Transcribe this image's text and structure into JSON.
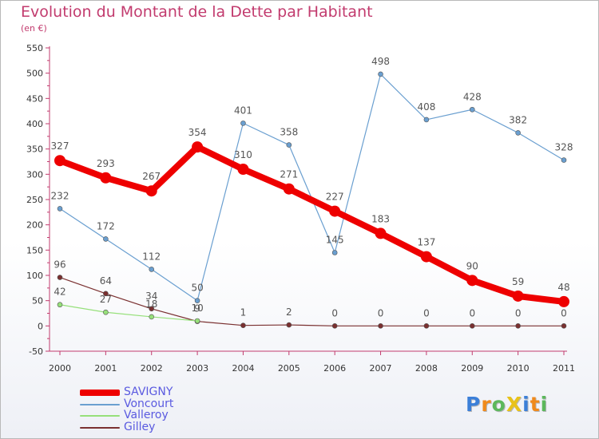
{
  "header": {
    "title": "Evolution du Montant de la Dette par Habitant",
    "subtitle": "(en €)"
  },
  "logo": {
    "letters": [
      {
        "char": "P",
        "color": "#3b7fd8"
      },
      {
        "char": "r",
        "color": "#f08a1c"
      },
      {
        "char": "o",
        "color": "#5cb85c"
      },
      {
        "char": "X",
        "color": "#e8c21a"
      },
      {
        "char": "i",
        "color": "#3b7fd8"
      },
      {
        "char": "t",
        "color": "#f08a1c"
      },
      {
        "char": "i",
        "color": "#5cb85c"
      }
    ]
  },
  "chart_data": {
    "type": "line",
    "title": "Evolution du Montant de la Dette par Habitant",
    "subtitle": "(en €)",
    "x": [
      "2000",
      "2001",
      "2002",
      "2003",
      "2004",
      "2005",
      "2006",
      "2007",
      "2008",
      "2009",
      "2010",
      "2011"
    ],
    "ylim": [
      -50,
      550
    ],
    "yticks": [
      -50,
      0,
      50,
      100,
      150,
      200,
      250,
      300,
      350,
      400,
      450,
      500,
      550
    ],
    "grid": false,
    "legend_position": "bottom-left",
    "series": [
      {
        "name": "SAVIGNY",
        "color": "#ee0000",
        "values": [
          327,
          293,
          267,
          354,
          310,
          271,
          227,
          183,
          137,
          90,
          59,
          48
        ],
        "labels": [
          "327",
          "293",
          "267",
          "354",
          "310",
          "271",
          "227",
          "183",
          "137",
          "90",
          "59",
          "48"
        ]
      },
      {
        "name": "Voncourt",
        "color": "#6a9fd0",
        "values": [
          232,
          172,
          112,
          50,
          401,
          358,
          145,
          498,
          408,
          428,
          382,
          328
        ],
        "labels": [
          "232",
          "172",
          "112",
          "50",
          "401",
          "358",
          "145",
          "498",
          "408",
          "428",
          "382",
          "328"
        ]
      },
      {
        "name": "Valleroy",
        "color": "#96e07a",
        "values": [
          42,
          27,
          18,
          10,
          null,
          null,
          null,
          null,
          null,
          null,
          null,
          null
        ],
        "labels": [
          "42",
          "27",
          "18",
          "10",
          "",
          "",
          "",
          "",
          "",
          "",
          "",
          ""
        ]
      },
      {
        "name": "Gilley",
        "color": "#7a3030",
        "values": [
          96,
          64,
          34,
          9,
          1,
          2,
          0,
          0,
          0,
          0,
          0,
          0
        ],
        "labels": [
          "96",
          "64",
          "34",
          "9",
          "1",
          "2",
          "0",
          "0",
          "0",
          "0",
          "0",
          "0"
        ]
      }
    ]
  }
}
